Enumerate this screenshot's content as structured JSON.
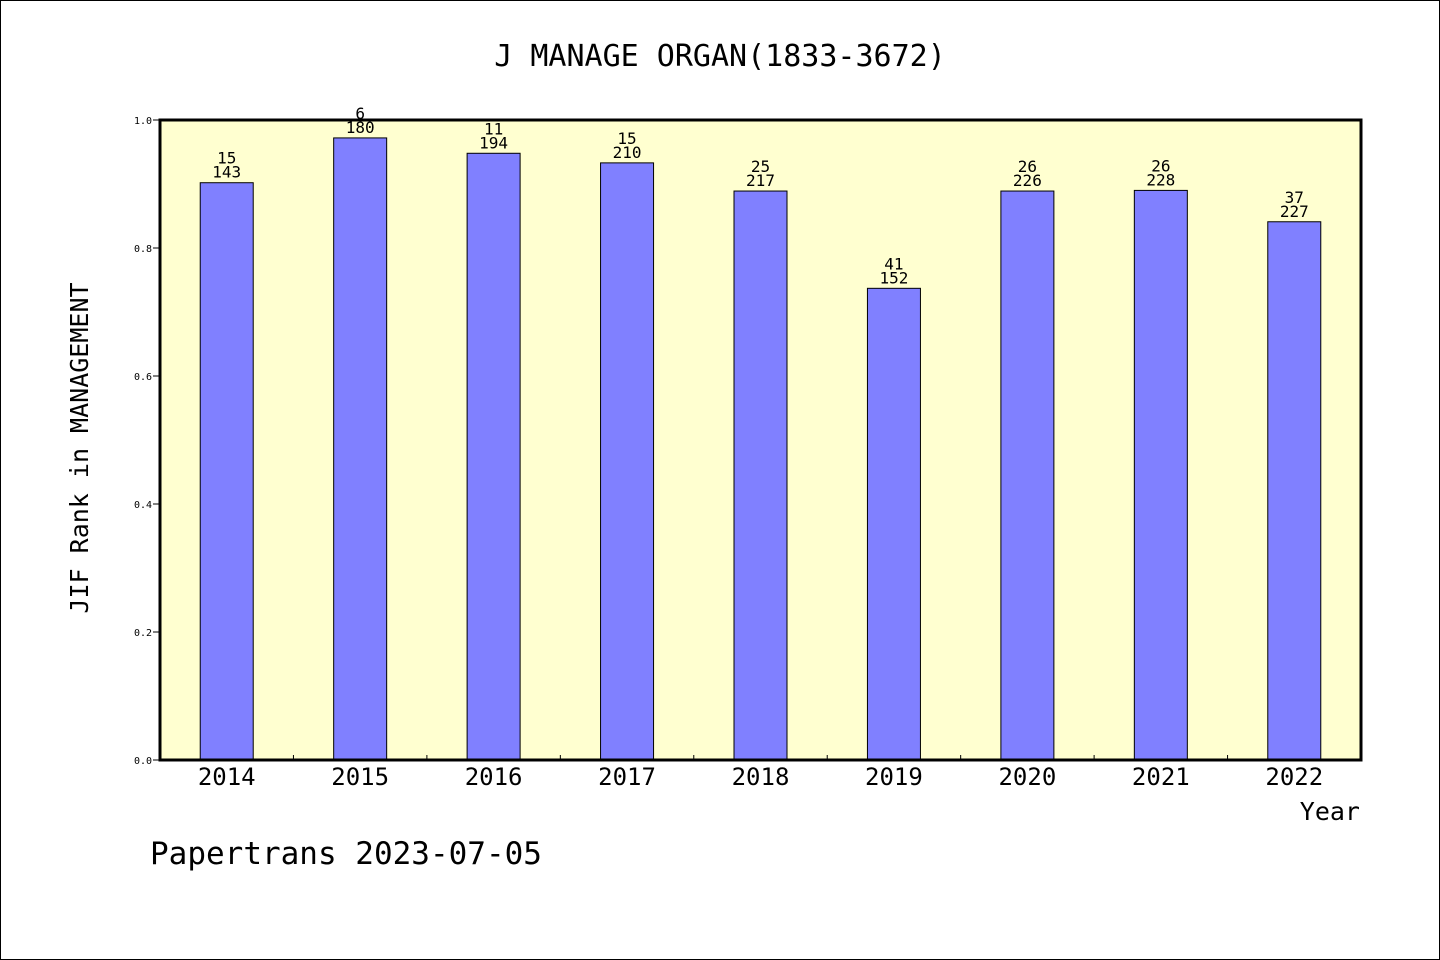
{
  "chart_data": {
    "type": "bar",
    "title": "J MANAGE ORGAN(1833-3672)",
    "xlabel": "Year",
    "ylabel": "JIF Rank in MANAGEMENT",
    "ylim": [
      0,
      1.0
    ],
    "yticks": [
      "0.0",
      "0.2",
      "0.4",
      "0.6",
      "0.8",
      "1.0"
    ],
    "ytick_values": [
      0,
      0.2,
      0.4,
      0.6,
      0.8,
      1.0
    ],
    "categories": [
      "2014",
      "2015",
      "2016",
      "2017",
      "2018",
      "2019",
      "2020",
      "2021",
      "2022"
    ],
    "values": [
      0.902,
      0.972,
      0.948,
      0.933,
      0.889,
      0.737,
      0.889,
      0.89,
      0.841
    ],
    "rank_labels": [
      "15",
      "6",
      "11",
      "15",
      "25",
      "41",
      "26",
      "26",
      "37"
    ],
    "total_labels": [
      "143",
      "180",
      "194",
      "210",
      "217",
      "152",
      "226",
      "228",
      "227"
    ],
    "grid": false,
    "colors": {
      "bar_fill": "#8080ff",
      "plot_background": "#ffffd0",
      "axes": "#000000"
    }
  },
  "footer": {
    "text": "Papertrans 2023-07-05"
  }
}
